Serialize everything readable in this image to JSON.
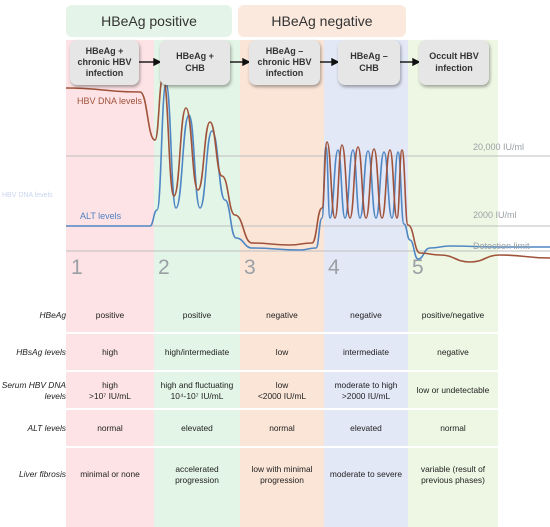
{
  "groups": [
    {
      "label": "HBeAg positive",
      "color": "#e4f4e8"
    },
    {
      "label": "HBeAg negative",
      "color": "#fbe9de"
    }
  ],
  "phases": [
    {
      "number": "1",
      "title": [
        "HBeAg +",
        "chronic HBV",
        "infection"
      ],
      "color": "#fde3e6"
    },
    {
      "number": "2",
      "title": [
        "HBeAg +",
        "CHB"
      ],
      "color": "#e3f5e6"
    },
    {
      "number": "3",
      "title": [
        "HBeAg –",
        "chronic HBV",
        "infection"
      ],
      "color": "#fbe5d7"
    },
    {
      "number": "4",
      "title": [
        "HBeAg –",
        "CHB"
      ],
      "color": "#e3e8f7"
    },
    {
      "number": "5",
      "title": [
        "Occult HBV",
        "infection"
      ],
      "color": "#eef7e4"
    }
  ],
  "curves": {
    "hbv_dna_label": "HBV DNA levels",
    "alt_label": "ALT levels",
    "hbv_dna_color": "#a0523a",
    "alt_color": "#4f87c4",
    "hbv_dna_ghost_label": "HBV DNA levels"
  },
  "reference_lines": [
    {
      "label": "20,000 IU/ml"
    },
    {
      "label": "2000 IU/ml"
    },
    {
      "label": "Detection limit"
    }
  ],
  "table": {
    "rows": [
      {
        "label": [
          "HBeAg"
        ],
        "cells": [
          [
            "positive"
          ],
          [
            "positive"
          ],
          [
            "negative"
          ],
          [
            "negative"
          ],
          [
            "positive/negative"
          ]
        ]
      },
      {
        "label": [
          "HBsAg levels"
        ],
        "cells": [
          [
            "high"
          ],
          [
            "high/intermediate"
          ],
          [
            "low"
          ],
          [
            "intermediate"
          ],
          [
            "negative"
          ]
        ]
      },
      {
        "label": [
          "Serum HBV DNA",
          "levels"
        ],
        "cells": [
          [
            "high",
            ">10⁷ IU/mL"
          ],
          [
            "high and fluctuating",
            "10⁴-10⁷ IU/mL"
          ],
          [
            "low",
            "<2000 IU/mL"
          ],
          [
            "moderate to high",
            ">2000 IU/mL"
          ],
          [
            "low or undetectable"
          ]
        ]
      },
      {
        "label": [
          "ALT levels"
        ],
        "cells": [
          [
            "normal"
          ],
          [
            "elevated"
          ],
          [
            "normal"
          ],
          [
            "elevated"
          ],
          [
            "normal"
          ]
        ]
      },
      {
        "label": [
          "Liver fibrosis"
        ],
        "cells": [
          [
            "minimal or none"
          ],
          [
            "accelerated",
            "progression"
          ],
          [
            "low with minimal",
            "progression"
          ],
          [
            "moderate to severe"
          ],
          [
            "variable (result of",
            "previous phases)"
          ]
        ]
      }
    ]
  }
}
